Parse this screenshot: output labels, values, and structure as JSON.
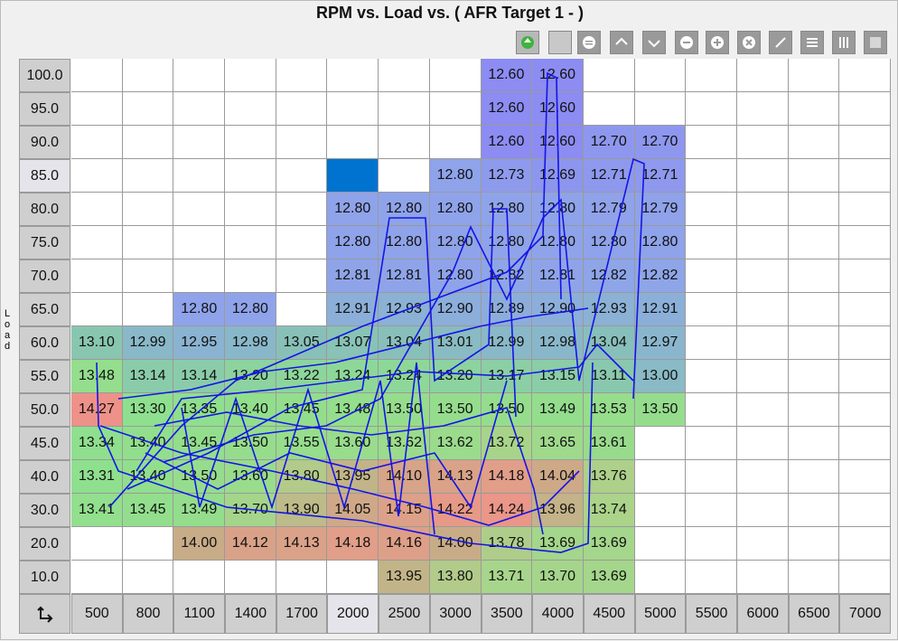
{
  "window": {
    "title": "RPM vs. Load vs. ( AFR Target 1 -   )",
    "y_axis_label": "Load"
  },
  "table": {
    "columns": [
      "500",
      "800",
      "1100",
      "1400",
      "1700",
      "2000",
      "2500",
      "3000",
      "3500",
      "4000",
      "4500",
      "5000",
      "5500",
      "6000",
      "6500",
      "7000"
    ],
    "selected_cell": [
      3,
      5
    ],
    "rows": [
      {
        "load": "100.0",
        "cells": [
          null,
          null,
          null,
          null,
          null,
          null,
          null,
          null,
          "12.60",
          "12.60",
          null,
          null,
          null,
          null,
          null,
          null
        ]
      },
      {
        "load": "95.0",
        "cells": [
          null,
          null,
          null,
          null,
          null,
          null,
          null,
          null,
          "12.60",
          "12.60",
          null,
          null,
          null,
          null,
          null,
          null
        ]
      },
      {
        "load": "90.0",
        "cells": [
          null,
          null,
          null,
          null,
          null,
          null,
          null,
          null,
          "12.60",
          "12.60",
          "12.70",
          "12.70",
          null,
          null,
          null,
          null
        ]
      },
      {
        "load": "85.0",
        "cells": [
          null,
          null,
          null,
          null,
          null,
          null,
          null,
          "12.80",
          "12.73",
          "12.69",
          "12.71",
          "12.71",
          null,
          null,
          null,
          null
        ]
      },
      {
        "load": "80.0",
        "cells": [
          null,
          null,
          null,
          null,
          null,
          "12.80",
          "12.80",
          "12.80",
          "12.80",
          "12.80",
          "12.79",
          "12.79",
          null,
          null,
          null,
          null
        ]
      },
      {
        "load": "75.0",
        "cells": [
          null,
          null,
          null,
          null,
          null,
          "12.80",
          "12.80",
          "12.80",
          "12.80",
          "12.80",
          "12.80",
          "12.80",
          null,
          null,
          null,
          null
        ]
      },
      {
        "load": "70.0",
        "cells": [
          null,
          null,
          null,
          null,
          null,
          "12.81",
          "12.81",
          "12.80",
          "12.82",
          "12.81",
          "12.82",
          "12.82",
          null,
          null,
          null,
          null
        ]
      },
      {
        "load": "65.0",
        "cells": [
          null,
          null,
          "12.80",
          "12.80",
          null,
          "12.91",
          "12.93",
          "12.90",
          "12.89",
          "12.90",
          "12.93",
          "12.91",
          null,
          null,
          null,
          null
        ]
      },
      {
        "load": "60.0",
        "cells": [
          "13.10",
          "12.99",
          "12.95",
          "12.98",
          "13.05",
          "13.07",
          "13.04",
          "13.01",
          "12.99",
          "12.98",
          "13.04",
          "12.97",
          null,
          null,
          null,
          null
        ]
      },
      {
        "load": "55.0",
        "cells": [
          "13.48",
          "13.14",
          "13.14",
          "13.20",
          "13.22",
          "13.24",
          "13.24",
          "13.20",
          "13.17",
          "13.15",
          "13.11",
          "13.00",
          null,
          null,
          null,
          null
        ]
      },
      {
        "load": "50.0",
        "cells": [
          "14.27",
          "13.30",
          "13.35",
          "13.40",
          "13.45",
          "13.48",
          "13.50",
          "13.50",
          "13.50",
          "13.49",
          "13.53",
          "13.50",
          null,
          null,
          null,
          null
        ]
      },
      {
        "load": "45.0",
        "cells": [
          "13.34",
          "13.40",
          "13.45",
          "13.50",
          "13.55",
          "13.60",
          "13.62",
          "13.62",
          "13.72",
          "13.65",
          "13.61",
          null,
          null,
          null,
          null,
          null
        ]
      },
      {
        "load": "40.0",
        "cells": [
          "13.31",
          "13.40",
          "13.50",
          "13.60",
          "13.80",
          "13.95",
          "14.10",
          "14.13",
          "14.18",
          "14.04",
          "13.76",
          null,
          null,
          null,
          null,
          null
        ]
      },
      {
        "load": "30.0",
        "cells": [
          "13.41",
          "13.45",
          "13.49",
          "13.70",
          "13.90",
          "14.05",
          "14.15",
          "14.22",
          "14.24",
          "13.96",
          "13.74",
          null,
          null,
          null,
          null,
          null
        ]
      },
      {
        "load": "20.0",
        "cells": [
          null,
          null,
          "14.00",
          "14.12",
          "14.13",
          "14.18",
          "14.16",
          "14.00",
          "13.78",
          "13.69",
          "13.69",
          null,
          null,
          null,
          null,
          null
        ]
      },
      {
        "load": "10.0",
        "cells": [
          null,
          null,
          null,
          null,
          null,
          null,
          "13.95",
          "13.80",
          "13.71",
          "13.70",
          "13.69",
          null,
          null,
          null,
          null,
          null
        ]
      }
    ]
  }
}
